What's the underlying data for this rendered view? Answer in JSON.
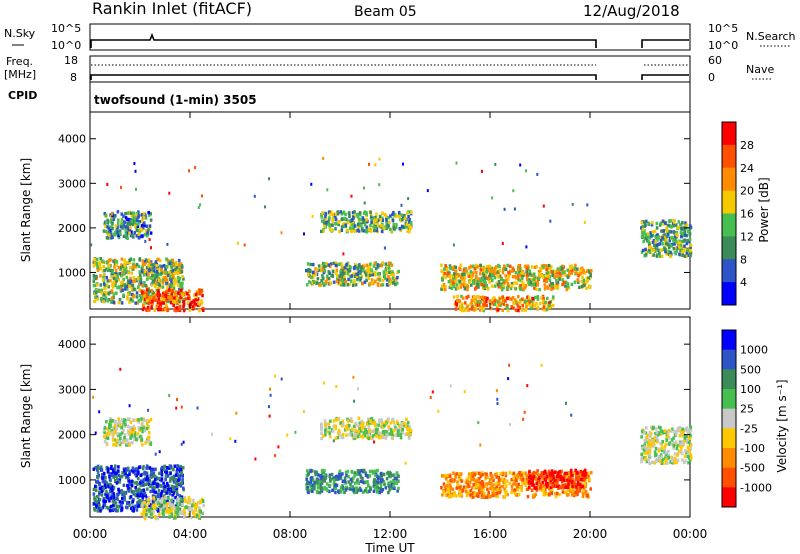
{
  "header": {
    "site": "Rankin Inlet (fitACF)",
    "beam": "Beam 05",
    "date": "12/Aug/2018"
  },
  "nsky_panel": {
    "left_label": "N.Sky",
    "left_ticks": [
      "10^5",
      "10^0"
    ],
    "right_label": "N.Search",
    "right_ticks": [
      "10^5",
      "10^0"
    ]
  },
  "freq_panel": {
    "left_label_1": "Freq.",
    "left_label_2": "[MHz]",
    "left_ticks": [
      "18",
      "8"
    ],
    "right_label": "Nave",
    "right_ticks": [
      "60",
      "0"
    ]
  },
  "cpid_panel": {
    "label": "CPID",
    "program": "twofsound (1-min) 3505"
  },
  "colors": {
    "power_scale": [
      "#0000ff",
      "#2d55c8",
      "#3c8c5a",
      "#46be50",
      "#f5c800",
      "#ff8c00",
      "#ff5000",
      "#ff0000"
    ],
    "velocity_scale": [
      "#ff0000",
      "#ff5000",
      "#ff8c00",
      "#ffc800",
      "#c8c8c8",
      "#46be50",
      "#3c8c5a",
      "#2d55c8",
      "#0000ff"
    ]
  },
  "chart_data": [
    {
      "type": "heatmap",
      "title": "",
      "xlabel": "",
      "ylabel": "Slant Range [km]",
      "x_ticks": [
        "00:00",
        "04:00",
        "08:00",
        "12:00",
        "16:00",
        "20:00",
        "00:00"
      ],
      "y_ticks": [
        "1000",
        "2000",
        "3000",
        "4000"
      ],
      "xlim": [
        0,
        24
      ],
      "ylim": [
        180,
        4600
      ],
      "colorbar": {
        "label": "Power [dB]",
        "ticks": [
          "4",
          "8",
          "12",
          "16",
          "20",
          "24",
          "28"
        ],
        "range": [
          0,
          32
        ]
      },
      "data_gap_hours": [
        20.2,
        21.9
      ],
      "scatter_bands": [
        {
          "t_start": 0.1,
          "t_end": 3.7,
          "range_low": 350,
          "range_high": 1350,
          "level": 14
        },
        {
          "t_start": 0.5,
          "t_end": 2.4,
          "range_low": 1800,
          "range_high": 2400,
          "level": 10
        },
        {
          "t_start": 2.0,
          "t_end": 4.5,
          "range_low": 180,
          "range_high": 650,
          "level": 26
        },
        {
          "t_start": 8.6,
          "t_end": 12.3,
          "range_low": 750,
          "range_high": 1250,
          "level": 14
        },
        {
          "t_start": 9.2,
          "t_end": 12.8,
          "range_low": 1950,
          "range_high": 2400,
          "level": 12
        },
        {
          "t_start": 14.0,
          "t_end": 20.0,
          "range_low": 650,
          "range_high": 1200,
          "level": 18
        },
        {
          "t_start": 14.5,
          "t_end": 18.5,
          "range_low": 180,
          "range_high": 500,
          "level": 22
        },
        {
          "t_start": 22.0,
          "t_end": 24.0,
          "range_low": 1400,
          "range_high": 2200,
          "level": 12
        }
      ]
    },
    {
      "type": "heatmap",
      "title": "",
      "xlabel": "Time UT",
      "ylabel": "Slant Range [km]",
      "x_ticks": [
        "00:00",
        "04:00",
        "08:00",
        "12:00",
        "16:00",
        "20:00",
        "00:00"
      ],
      "y_ticks": [
        "1000",
        "2000",
        "3000",
        "4000"
      ],
      "xlim": [
        0,
        24
      ],
      "ylim": [
        180,
        4600
      ],
      "colorbar": {
        "label": "Velocity [m s⁻¹]",
        "ticks": [
          "1000",
          "500",
          "100",
          "25",
          "-25",
          "-100",
          "-500",
          "-1000"
        ]
      },
      "data_gap_hours": [
        20.2,
        21.9
      ],
      "scatter_bands": [
        {
          "t_start": 0.1,
          "t_end": 3.7,
          "range_low": 350,
          "range_high": 1350,
          "level": 7
        },
        {
          "t_start": 0.5,
          "t_end": 2.4,
          "range_low": 1800,
          "range_high": 2400,
          "level": 4
        },
        {
          "t_start": 2.0,
          "t_end": 4.5,
          "range_low": 180,
          "range_high": 650,
          "level": 4
        },
        {
          "t_start": 8.6,
          "t_end": 12.3,
          "range_low": 750,
          "range_high": 1250,
          "level": 6
        },
        {
          "t_start": 9.2,
          "t_end": 12.8,
          "range_low": 1950,
          "range_high": 2400,
          "level": 4
        },
        {
          "t_start": 14.0,
          "t_end": 20.0,
          "range_low": 650,
          "range_high": 1200,
          "level": 2
        },
        {
          "t_start": 17.5,
          "t_end": 19.8,
          "range_low": 850,
          "range_high": 1250,
          "level": 0
        },
        {
          "t_start": 22.0,
          "t_end": 24.0,
          "range_low": 1400,
          "range_high": 2200,
          "level": 4
        }
      ]
    }
  ]
}
